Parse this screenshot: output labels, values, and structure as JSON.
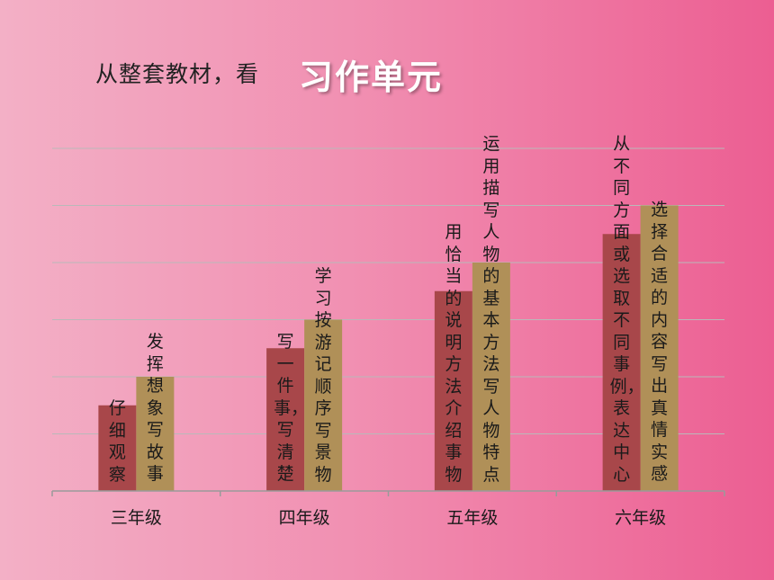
{
  "header": {
    "prefix": "从整套教材，看",
    "main": "习作单元"
  },
  "chart_data": {
    "type": "bar",
    "categories": [
      "三年级",
      "四年级",
      "五年级",
      "六年级"
    ],
    "ylim": [
      0,
      6
    ],
    "grid": true,
    "series": [
      {
        "color": "#a8474a",
        "values": [
          1.5,
          2.5,
          3.5,
          4.5
        ],
        "labels": [
          "仔细观察",
          "写一件事，写清楚",
          "用恰当的说明方法介绍事物",
          "从不同方面或选取不同事例，表达中心"
        ]
      },
      {
        "color": "#b09058",
        "values": [
          2,
          3,
          4,
          5
        ],
        "labels": [
          "发挥想象写故事",
          "学习按游记顺序写景物",
          "运用描写人物的基本方法写人物特点",
          "选择合适的内容写出真情实感"
        ]
      }
    ]
  }
}
